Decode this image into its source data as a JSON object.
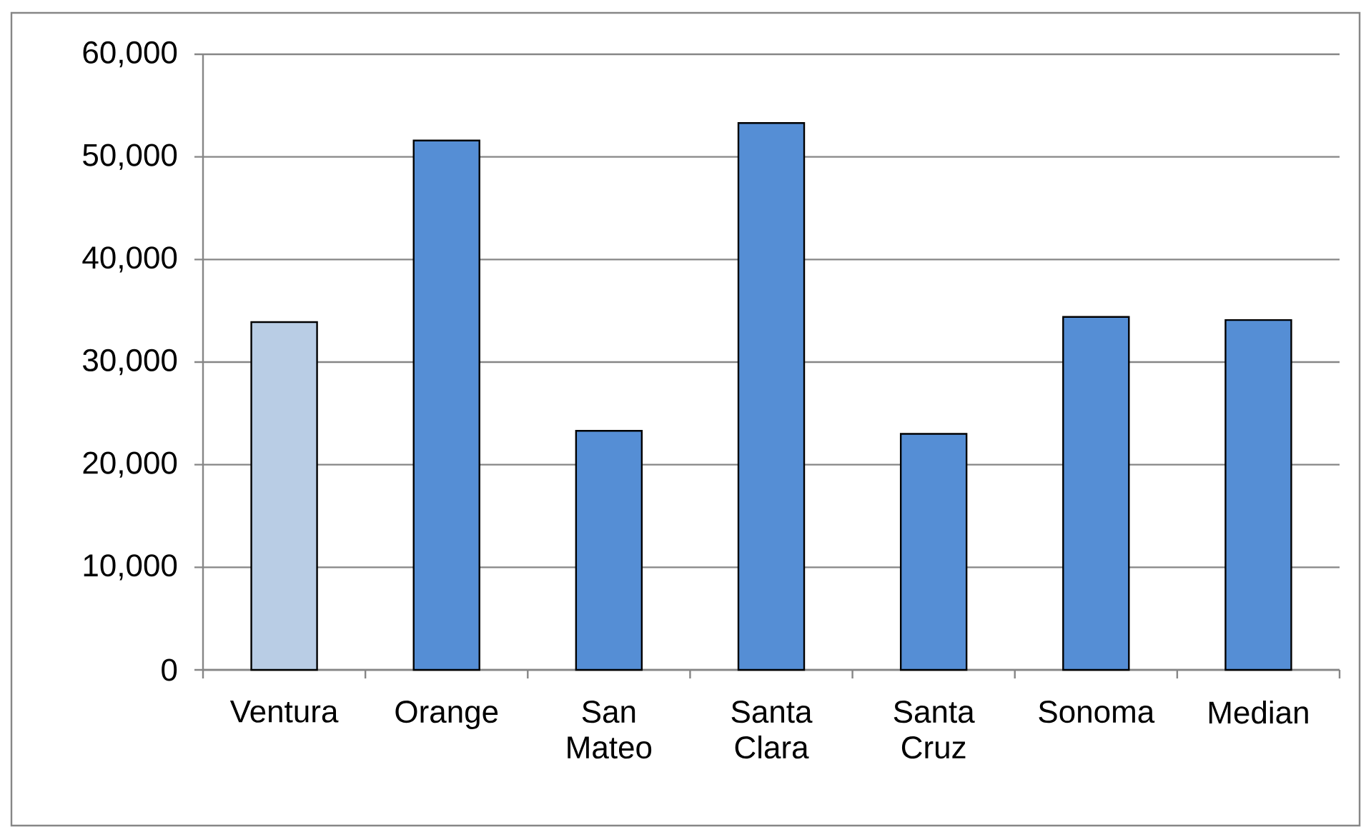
{
  "chart_data": {
    "type": "bar",
    "categories": [
      "Ventura",
      "Orange",
      "San Mateo",
      "Santa Clara",
      "Santa Cruz",
      "Sonoma",
      "Median"
    ],
    "values": [
      33900,
      51600,
      23300,
      53300,
      23000,
      34400,
      34100
    ],
    "colors": [
      "#b9cde5",
      "#558ed5",
      "#558ed5",
      "#558ed5",
      "#558ed5",
      "#558ed5",
      "#558ed5"
    ],
    "ylim": [
      0,
      60000
    ],
    "yticks": [
      0,
      {
        "value": 10000,
        "label": "10,000"
      },
      {
        "value": 20000,
        "label": "20,000"
      },
      {
        "value": 30000,
        "label": "30,000"
      },
      {
        "value": 40000,
        "label": "40,000"
      },
      {
        "value": 50000,
        "label": "50,000"
      },
      {
        "value": 60000,
        "label": "60,000"
      }
    ],
    "grid": "y"
  }
}
